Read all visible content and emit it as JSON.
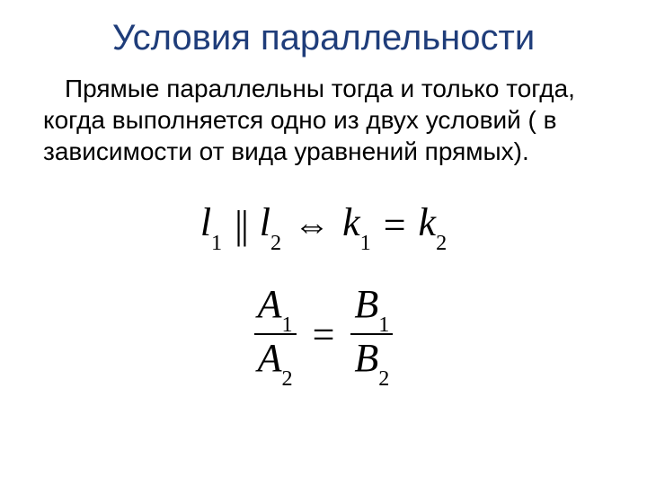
{
  "title": {
    "text": "Условия параллельности",
    "color": "#1f3d7a",
    "fontsize": 40
  },
  "body": {
    "text": "Прямые параллельны тогда и только тогда, когда выполняется одно из двух условий ( в зависимости от вида уравнений прямых).",
    "color": "#000000",
    "fontsize": 28
  },
  "formula1": {
    "l1": "l",
    "l1_sub": "1",
    "parallel": "||",
    "l2": "l",
    "l2_sub": "2",
    "iff": "⇔",
    "k1": "k",
    "k1_sub": "1",
    "eq": "=",
    "k2": "k",
    "k2_sub": "2",
    "color": "#000000",
    "fontsize": 44
  },
  "formula2": {
    "A1": "A",
    "A1_sub": "1",
    "A2": "A",
    "A2_sub": "2",
    "eq": "=",
    "B1": "B",
    "B1_sub": "1",
    "B2": "B",
    "B2_sub": "2",
    "color": "#000000",
    "fontsize": 44
  },
  "background_color": "#ffffff"
}
